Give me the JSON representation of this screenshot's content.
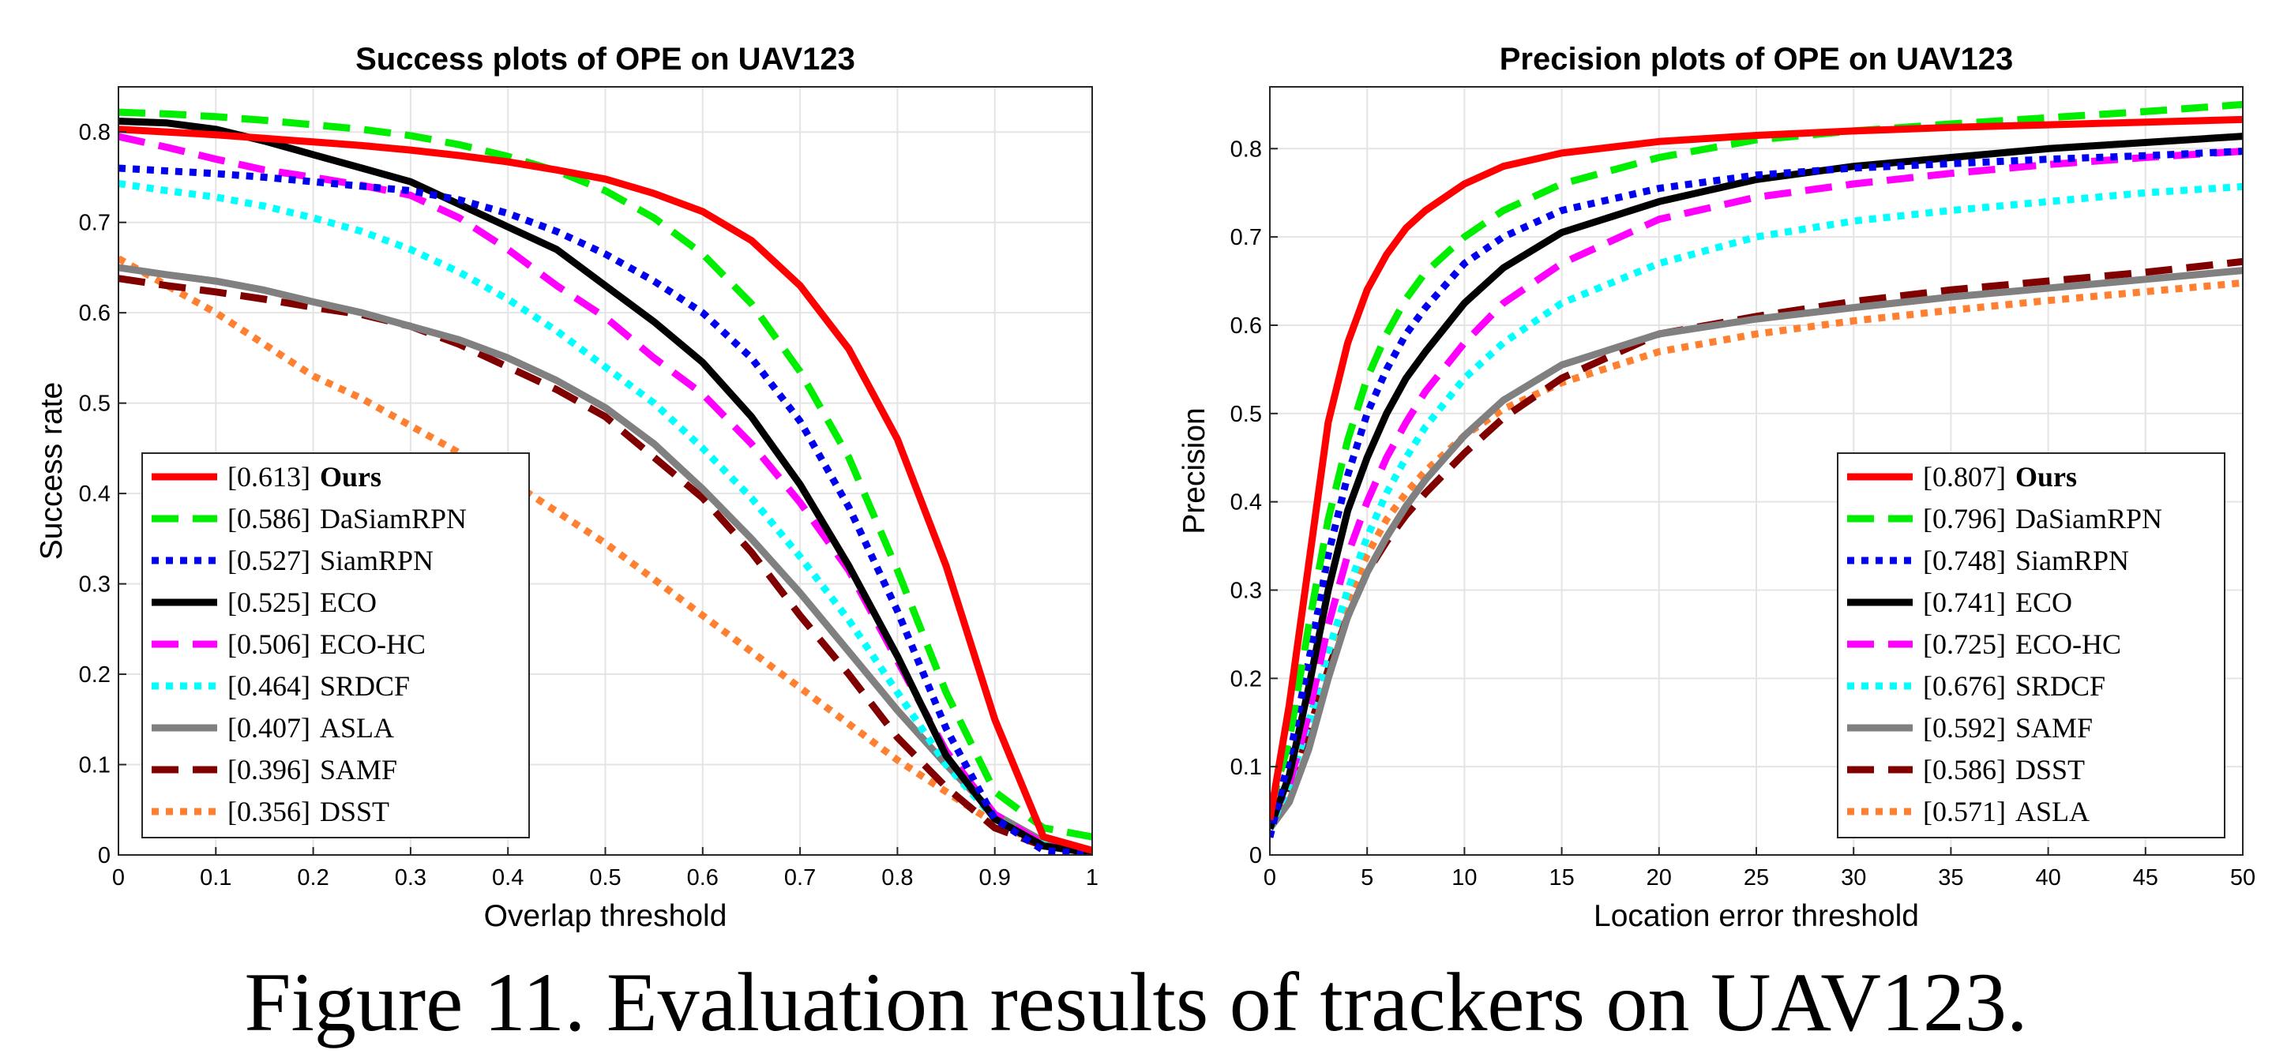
{
  "caption": "Figure 11. Evaluation results of trackers on UAV123.",
  "chart_data": [
    {
      "type": "line",
      "title": "Success plots of OPE on UAV123",
      "xlabel": "Overlap threshold",
      "ylabel": "Success rate",
      "xlim": [
        0,
        1
      ],
      "ylim": [
        0,
        0.85
      ],
      "xticks": [
        0,
        0.1,
        0.2,
        0.3,
        0.4,
        0.5,
        0.6,
        0.7,
        0.8,
        0.9,
        1
      ],
      "xtick_labels": [
        "0",
        "0.1",
        "0.2",
        "0.3",
        "0.4",
        "0.5",
        "0.6",
        "0.7",
        "0.8",
        "0.9",
        "1"
      ],
      "yticks": [
        0,
        0.1,
        0.2,
        0.3,
        0.4,
        0.5,
        0.6,
        0.7,
        0.8
      ],
      "ytick_labels": [
        "0",
        "0.1",
        "0.2",
        "0.3",
        "0.4",
        "0.5",
        "0.6",
        "0.7",
        "0.8"
      ],
      "grid": true,
      "legend_position": "bottom-left",
      "x": [
        0,
        0.05,
        0.1,
        0.15,
        0.2,
        0.25,
        0.3,
        0.35,
        0.4,
        0.45,
        0.5,
        0.55,
        0.6,
        0.65,
        0.7,
        0.75,
        0.8,
        0.85,
        0.9,
        0.95,
        1
      ],
      "series": [
        {
          "name": "Ours",
          "score": "0.613",
          "color": "#ff0000",
          "style": "solid",
          "values": [
            0.803,
            0.8,
            0.797,
            0.793,
            0.789,
            0.785,
            0.78,
            0.774,
            0.767,
            0.758,
            0.748,
            0.732,
            0.712,
            0.68,
            0.63,
            0.56,
            0.46,
            0.32,
            0.15,
            0.02,
            0.005
          ]
        },
        {
          "name": "DaSiamRPN",
          "score": "0.586",
          "color": "#00ee00",
          "style": "dash",
          "values": [
            0.822,
            0.82,
            0.817,
            0.813,
            0.808,
            0.803,
            0.796,
            0.786,
            0.773,
            0.757,
            0.735,
            0.705,
            0.665,
            0.61,
            0.535,
            0.44,
            0.315,
            0.18,
            0.07,
            0.03,
            0.02
          ]
        },
        {
          "name": "SiamRPN",
          "score": "0.527",
          "color": "#0000ee",
          "style": "dot",
          "values": [
            0.76,
            0.757,
            0.754,
            0.75,
            0.745,
            0.74,
            0.735,
            0.725,
            0.71,
            0.69,
            0.665,
            0.635,
            0.6,
            0.55,
            0.48,
            0.385,
            0.27,
            0.14,
            0.04,
            0.005,
            0.001
          ]
        },
        {
          "name": "ECO",
          "score": "0.525",
          "color": "#000000",
          "style": "solid",
          "values": [
            0.812,
            0.81,
            0.803,
            0.79,
            0.775,
            0.76,
            0.745,
            0.72,
            0.695,
            0.67,
            0.63,
            0.59,
            0.545,
            0.485,
            0.41,
            0.32,
            0.22,
            0.11,
            0.04,
            0.01,
            0.002
          ]
        },
        {
          "name": "ECO-HC",
          "score": "0.506",
          "color": "#ff00ff",
          "style": "dash",
          "values": [
            0.795,
            0.783,
            0.77,
            0.758,
            0.75,
            0.741,
            0.73,
            0.705,
            0.67,
            0.63,
            0.595,
            0.55,
            0.51,
            0.455,
            0.39,
            0.315,
            0.215,
            0.115,
            0.045,
            0.012,
            0.003
          ]
        },
        {
          "name": "SRDCF",
          "score": "0.464",
          "color": "#00ffff",
          "style": "dot",
          "values": [
            0.743,
            0.735,
            0.728,
            0.718,
            0.705,
            0.69,
            0.67,
            0.645,
            0.615,
            0.58,
            0.54,
            0.5,
            0.45,
            0.395,
            0.33,
            0.26,
            0.18,
            0.1,
            0.04,
            0.012,
            0.003
          ]
        },
        {
          "name": "ASLA",
          "score": "0.407",
          "color": "#808080",
          "style": "solid",
          "values": [
            0.65,
            0.642,
            0.635,
            0.625,
            0.612,
            0.6,
            0.585,
            0.57,
            0.55,
            0.525,
            0.495,
            0.455,
            0.405,
            0.35,
            0.29,
            0.225,
            0.16,
            0.1,
            0.045,
            0.015,
            0.004
          ]
        },
        {
          "name": "SAMF",
          "score": "0.396",
          "color": "#800000",
          "style": "dash",
          "values": [
            0.638,
            0.63,
            0.623,
            0.615,
            0.606,
            0.598,
            0.585,
            0.565,
            0.54,
            0.515,
            0.485,
            0.44,
            0.395,
            0.335,
            0.265,
            0.2,
            0.13,
            0.075,
            0.03,
            0.01,
            0.003
          ]
        },
        {
          "name": "DSST",
          "score": "0.356",
          "color": "#ff8030",
          "style": "dot",
          "values": [
            0.66,
            0.63,
            0.6,
            0.565,
            0.53,
            0.505,
            0.475,
            0.445,
            0.415,
            0.38,
            0.345,
            0.305,
            0.265,
            0.225,
            0.185,
            0.145,
            0.105,
            0.07,
            0.035,
            0.012,
            0.003
          ]
        }
      ]
    },
    {
      "type": "line",
      "title": "Precision plots of OPE on UAV123",
      "xlabel": "Location error threshold",
      "ylabel": "Precision",
      "xlim": [
        0,
        50
      ],
      "ylim": [
        0,
        0.87
      ],
      "xticks": [
        0,
        5,
        10,
        15,
        20,
        25,
        30,
        35,
        40,
        45,
        50
      ],
      "xtick_labels": [
        "0",
        "5",
        "10",
        "15",
        "20",
        "25",
        "30",
        "35",
        "40",
        "45",
        "50"
      ],
      "yticks": [
        0,
        0.1,
        0.2,
        0.3,
        0.4,
        0.5,
        0.6,
        0.7,
        0.8
      ],
      "ytick_labels": [
        "0",
        "0.1",
        "0.2",
        "0.3",
        "0.4",
        "0.5",
        "0.6",
        "0.7",
        "0.8"
      ],
      "grid": true,
      "legend_position": "bottom-right",
      "x": [
        0,
        1,
        2,
        3,
        4,
        5,
        6,
        7,
        8,
        10,
        12,
        15,
        20,
        25,
        30,
        35,
        40,
        45,
        50
      ],
      "series": [
        {
          "name": "Ours",
          "score": "0.807",
          "color": "#ff0000",
          "style": "solid",
          "values": [
            0.04,
            0.17,
            0.33,
            0.49,
            0.58,
            0.64,
            0.68,
            0.71,
            0.73,
            0.76,
            0.78,
            0.795,
            0.808,
            0.815,
            0.82,
            0.824,
            0.827,
            0.83,
            0.833
          ]
        },
        {
          "name": "DaSiamRPN",
          "score": "0.796",
          "color": "#00ee00",
          "style": "dash",
          "values": [
            0.05,
            0.13,
            0.26,
            0.38,
            0.47,
            0.54,
            0.59,
            0.63,
            0.66,
            0.7,
            0.73,
            0.76,
            0.79,
            0.81,
            0.82,
            0.828,
            0.835,
            0.842,
            0.85
          ]
        },
        {
          "name": "SiamRPN",
          "score": "0.748",
          "color": "#0000ee",
          "style": "dot",
          "values": [
            0.02,
            0.11,
            0.22,
            0.34,
            0.43,
            0.5,
            0.55,
            0.59,
            0.62,
            0.67,
            0.7,
            0.73,
            0.755,
            0.77,
            0.778,
            0.783,
            0.788,
            0.792,
            0.797
          ]
        },
        {
          "name": "ECO",
          "score": "0.741",
          "color": "#000000",
          "style": "solid",
          "values": [
            0.03,
            0.09,
            0.19,
            0.3,
            0.39,
            0.45,
            0.5,
            0.54,
            0.57,
            0.625,
            0.665,
            0.705,
            0.74,
            0.765,
            0.78,
            0.79,
            0.8,
            0.807,
            0.814
          ]
        },
        {
          "name": "ECO-HC",
          "score": "0.725",
          "color": "#ff00ff",
          "style": "dash",
          "values": [
            0.04,
            0.08,
            0.16,
            0.26,
            0.34,
            0.4,
            0.45,
            0.49,
            0.525,
            0.58,
            0.625,
            0.67,
            0.72,
            0.745,
            0.76,
            0.772,
            0.782,
            0.79,
            0.797
          ]
        },
        {
          "name": "SRDCF",
          "score": "0.676",
          "color": "#00ffff",
          "style": "dot",
          "values": [
            0.03,
            0.08,
            0.15,
            0.23,
            0.3,
            0.36,
            0.41,
            0.45,
            0.485,
            0.54,
            0.58,
            0.625,
            0.67,
            0.7,
            0.718,
            0.73,
            0.74,
            0.75,
            0.757
          ]
        },
        {
          "name": "SAMF",
          "score": "0.592",
          "color": "#808080",
          "style": "solid",
          "values": [
            0.03,
            0.06,
            0.12,
            0.2,
            0.27,
            0.32,
            0.36,
            0.395,
            0.425,
            0.475,
            0.515,
            0.555,
            0.59,
            0.607,
            0.62,
            0.632,
            0.642,
            0.652,
            0.662
          ]
        },
        {
          "name": "DSST",
          "score": "0.586",
          "color": "#800000",
          "style": "dash",
          "values": [
            0.03,
            0.07,
            0.14,
            0.21,
            0.27,
            0.32,
            0.355,
            0.385,
            0.41,
            0.455,
            0.495,
            0.54,
            0.59,
            0.61,
            0.627,
            0.64,
            0.65,
            0.66,
            0.672
          ]
        },
        {
          "name": "ASLA",
          "score": "0.571",
          "color": "#ff8030",
          "style": "dot",
          "values": [
            0.03,
            0.08,
            0.15,
            0.23,
            0.29,
            0.34,
            0.38,
            0.41,
            0.435,
            0.475,
            0.505,
            0.535,
            0.57,
            0.59,
            0.605,
            0.617,
            0.628,
            0.638,
            0.648
          ]
        }
      ]
    }
  ]
}
